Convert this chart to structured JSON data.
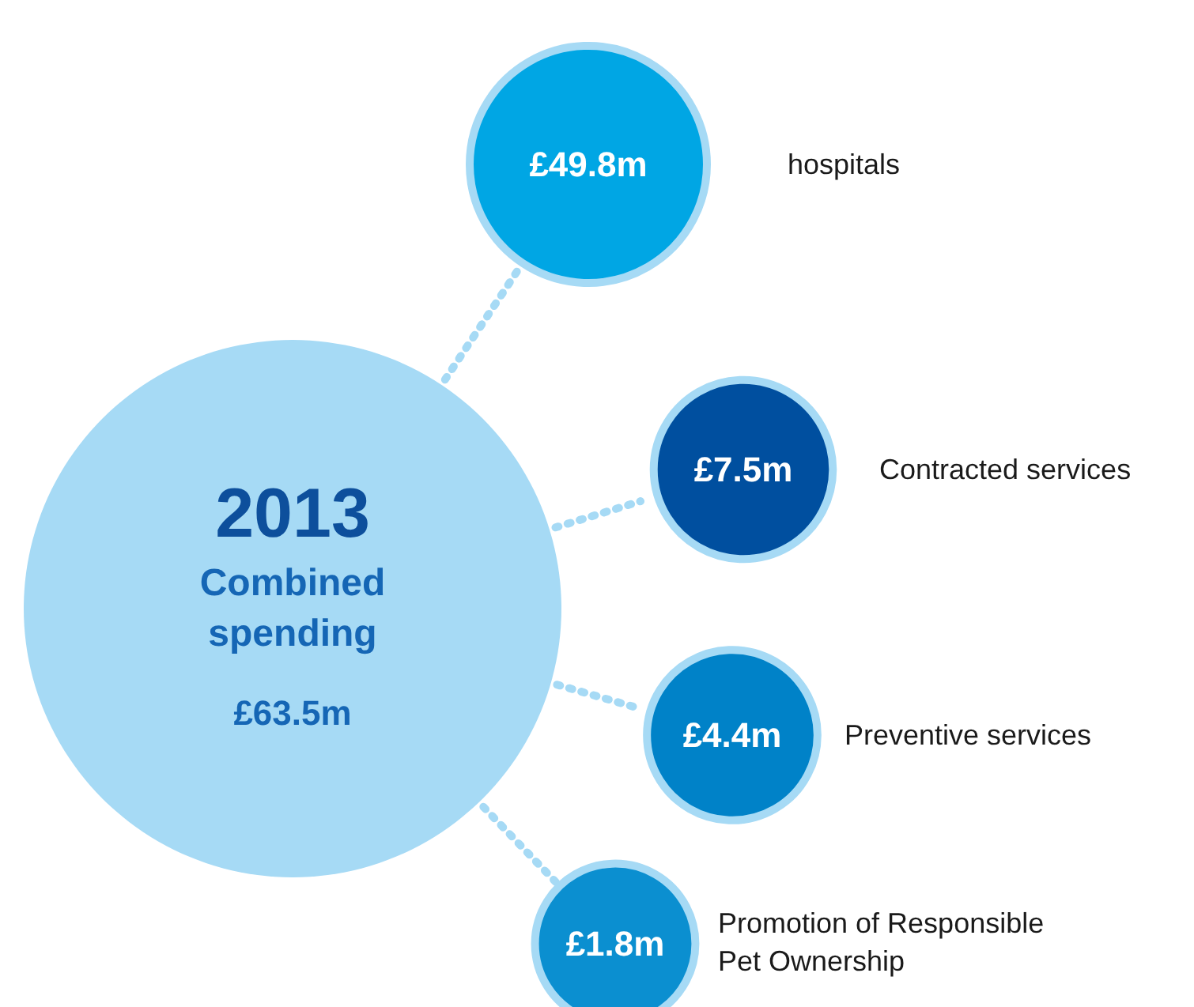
{
  "chart_data": {
    "type": "other",
    "title": "2013",
    "subtitle": "Combined spending",
    "annotations": [
      "£63.5m"
    ],
    "categories": [
      "hospitals",
      "Contracted services",
      "Preventive services",
      "Promotion of Responsible Pet Ownership"
    ],
    "values": [
      49.8,
      7.5,
      4.4,
      1.8
    ],
    "value_labels": [
      "£49.8m",
      "£7.5m",
      "£4.4m",
      "£1.8m"
    ],
    "colors": [
      "#00a6e4",
      "#004f9f",
      "#0082c8",
      "#0b8fd0"
    ]
  }
}
